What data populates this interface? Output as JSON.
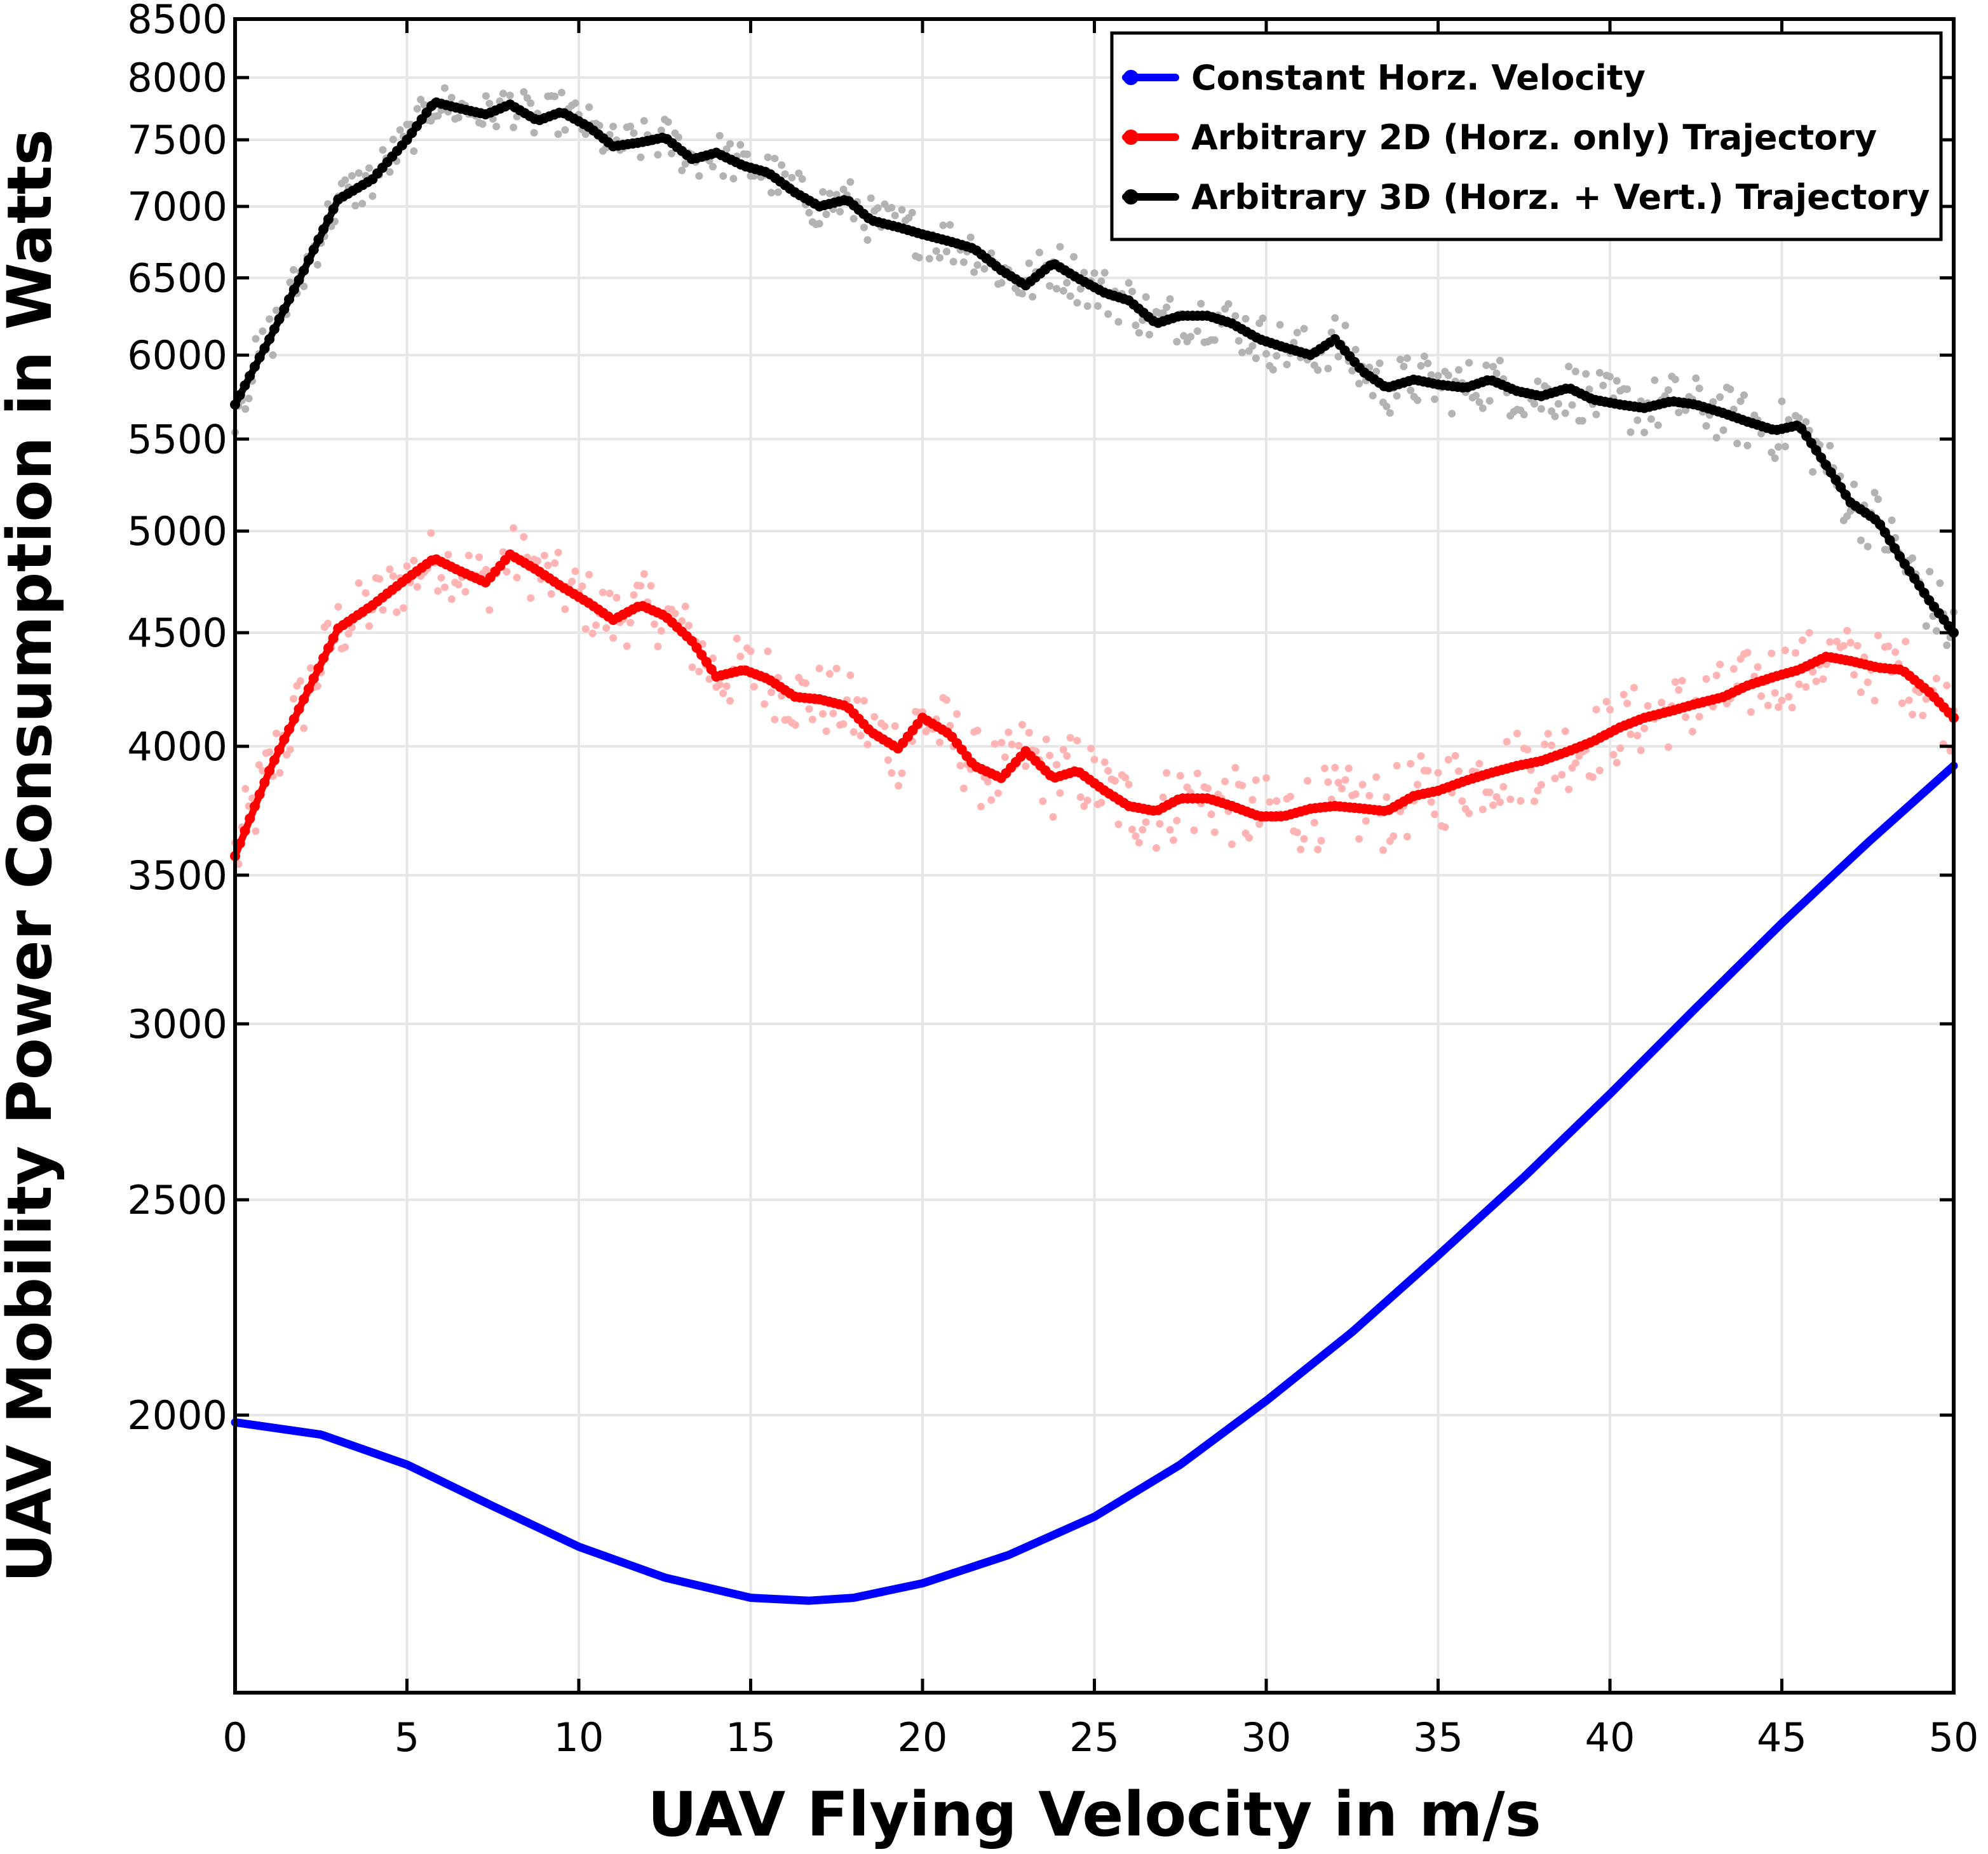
{
  "chart_data": {
    "type": "line",
    "title": "",
    "xlabel": "UAV Flying Velocity in m/s",
    "ylabel": "UAV Mobility Power Consumption in Watts",
    "xlim": [
      0,
      50
    ],
    "ylim": [
      1500,
      8500
    ],
    "y_scale": "log",
    "grid": true,
    "legend_position": "top-right",
    "x_ticks": [
      "0",
      "5",
      "10",
      "15",
      "20",
      "25",
      "30",
      "35",
      "40",
      "45",
      "50"
    ],
    "y_ticks": [
      "2000",
      "2500",
      "3000",
      "3500",
      "4000",
      "4500",
      "5000",
      "5500",
      "6000",
      "6500",
      "7000",
      "7500",
      "8000",
      "8500"
    ],
    "series": [
      {
        "name": "Constant Horz. Velocity",
        "color": "#0000ff",
        "style": "smooth-line",
        "x": [
          0,
          2.5,
          5,
          7.5,
          10,
          12.5,
          15,
          16.7,
          18,
          20,
          22.5,
          25,
          27.5,
          30,
          32.5,
          35,
          37.5,
          40,
          42.5,
          45,
          47.5,
          50
        ],
        "y": [
          1985,
          1960,
          1900,
          1820,
          1745,
          1690,
          1655,
          1650,
          1655,
          1680,
          1730,
          1800,
          1900,
          2030,
          2180,
          2360,
          2560,
          2790,
          3050,
          3330,
          3620,
          3920
        ]
      },
      {
        "name": "Arbitrary 2D (Horz. only) Trajectory",
        "color": "#ff0000",
        "scatter_color": "#ffb3b3",
        "style": "dotted-line-with-scatter",
        "x": [
          0,
          1,
          2,
          3,
          4,
          5,
          5.8,
          6.5,
          7.3,
          8,
          8.8,
          9.5,
          10.3,
          11,
          11.8,
          12.5,
          13.3,
          14,
          14.8,
          15.5,
          16.3,
          17,
          17.8,
          18.5,
          19.3,
          20,
          20.8,
          21.5,
          22.3,
          23,
          23.8,
          24.5,
          25.3,
          26,
          26.8,
          27.5,
          28.3,
          29,
          29.8,
          30.5,
          31.3,
          32,
          32.8,
          33.5,
          34.3,
          35,
          35.8,
          36.5,
          37.3,
          38,
          38.8,
          39.5,
          40.3,
          41,
          41.8,
          42.5,
          43.3,
          44,
          44.8,
          45.5,
          46.3,
          47,
          47.8,
          48.5,
          49.3,
          50
        ],
        "y": [
          3570,
          3900,
          4200,
          4520,
          4630,
          4760,
          4860,
          4800,
          4740,
          4880,
          4800,
          4720,
          4640,
          4560,
          4630,
          4580,
          4460,
          4300,
          4330,
          4290,
          4210,
          4200,
          4170,
          4060,
          3990,
          4120,
          4050,
          3920,
          3870,
          3980,
          3870,
          3900,
          3820,
          3760,
          3740,
          3790,
          3790,
          3760,
          3720,
          3720,
          3750,
          3760,
          3750,
          3740,
          3800,
          3820,
          3860,
          3890,
          3920,
          3940,
          3980,
          4020,
          4080,
          4120,
          4150,
          4180,
          4210,
          4260,
          4300,
          4330,
          4390,
          4370,
          4340,
          4330,
          4230,
          4120
        ]
      },
      {
        "name": "Arbitrary 3D (Horz. + Vert.) Trajectory",
        "color": "#000000",
        "scatter_color": "#b3b3b3",
        "style": "dotted-line-with-scatter",
        "x": [
          0,
          1,
          2,
          3,
          4,
          5,
          5.8,
          6.5,
          7.3,
          8,
          8.8,
          9.5,
          10.3,
          11,
          11.8,
          12.5,
          13.3,
          14,
          14.8,
          15.5,
          16.3,
          17,
          17.8,
          18.5,
          19.3,
          20,
          20.8,
          21.5,
          22.3,
          23,
          23.8,
          24.5,
          25.3,
          26,
          26.8,
          27.5,
          28.3,
          29,
          29.8,
          30.5,
          31.3,
          32,
          32.8,
          33.5,
          34.3,
          35,
          35.8,
          36.5,
          37.3,
          38,
          38.8,
          39.5,
          40.3,
          41,
          41.8,
          42.5,
          43.3,
          44,
          44.8,
          45.5,
          46.3,
          47,
          47.8,
          48.5,
          49.3,
          50
        ],
        "y": [
          5700,
          6100,
          6550,
          7050,
          7200,
          7500,
          7800,
          7750,
          7700,
          7780,
          7650,
          7720,
          7600,
          7450,
          7480,
          7520,
          7350,
          7400,
          7300,
          7250,
          7100,
          7000,
          7050,
          6900,
          6850,
          6800,
          6750,
          6700,
          6550,
          6450,
          6600,
          6500,
          6400,
          6350,
          6200,
          6250,
          6250,
          6200,
          6100,
          6050,
          6000,
          6100,
          5900,
          5800,
          5850,
          5820,
          5800,
          5850,
          5780,
          5750,
          5800,
          5730,
          5700,
          5680,
          5720,
          5700,
          5650,
          5600,
          5550,
          5580,
          5350,
          5150,
          5050,
          4850,
          4650,
          4500
        ]
      }
    ]
  }
}
